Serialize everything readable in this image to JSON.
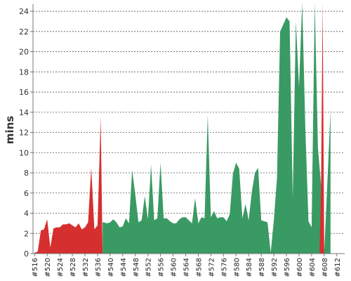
{
  "chart_data": {
    "type": "area",
    "ylabel": "mins",
    "xlabel": "",
    "title": "",
    "ylim": [
      0,
      24.7
    ],
    "yticks": [
      0,
      2,
      4,
      6,
      8,
      10,
      12,
      14,
      16,
      18,
      20,
      22,
      24
    ],
    "xlim": [
      515.5,
      614.5
    ],
    "xticks": [
      516,
      520,
      524,
      528,
      532,
      536,
      540,
      544,
      548,
      552,
      556,
      560,
      564,
      568,
      572,
      576,
      580,
      584,
      588,
      592,
      596,
      600,
      604,
      608,
      612
    ],
    "xtick_prefix": "#",
    "grid": true,
    "legend": "none",
    "colors": {
      "red": "#d62f2f",
      "green": "#3a9a63"
    },
    "series": [
      {
        "color": "red",
        "points": [
          [
            516,
            0.1
          ],
          [
            517,
            0.2
          ],
          [
            518,
            2.3
          ],
          [
            519,
            2.4
          ],
          [
            520,
            3.4
          ],
          [
            521,
            0.6
          ],
          [
            522,
            2.5
          ],
          [
            523,
            2.6
          ],
          [
            524,
            2.6
          ],
          [
            525,
            2.9
          ],
          [
            526,
            2.9
          ],
          [
            527,
            3.0
          ],
          [
            528,
            2.8
          ],
          [
            529,
            2.6
          ],
          [
            530,
            3.0
          ],
          [
            531,
            2.4
          ],
          [
            532,
            2.6
          ],
          [
            533,
            3.1
          ],
          [
            534,
            8.5
          ],
          [
            535,
            2.4
          ],
          [
            536,
            2.8
          ],
          [
            537,
            13.5
          ],
          [
            537.6,
            0
          ]
        ]
      },
      {
        "color": "green",
        "points": [
          [
            537.6,
            3.1
          ],
          [
            538,
            3.1
          ],
          [
            539,
            3.0
          ],
          [
            540,
            3.1
          ],
          [
            541,
            3.4
          ],
          [
            542,
            3.1
          ],
          [
            543,
            2.6
          ],
          [
            544,
            2.7
          ],
          [
            545,
            3.5
          ],
          [
            546,
            3.0
          ],
          [
            547,
            8.3
          ],
          [
            548,
            5.8
          ],
          [
            549,
            3.1
          ],
          [
            550,
            3.3
          ],
          [
            551,
            5.7
          ],
          [
            552,
            3.4
          ],
          [
            553,
            8.8
          ],
          [
            554,
            3.3
          ],
          [
            555,
            3.5
          ],
          [
            556,
            9.0
          ],
          [
            557,
            3.5
          ],
          [
            558,
            3.5
          ],
          [
            559,
            3.2
          ],
          [
            560,
            3.0
          ],
          [
            561,
            3.0
          ],
          [
            562,
            3.4
          ],
          [
            563,
            3.6
          ],
          [
            564,
            3.6
          ],
          [
            565,
            3.3
          ],
          [
            566,
            3.0
          ],
          [
            567,
            5.5
          ],
          [
            568,
            3.0
          ],
          [
            569,
            3.6
          ],
          [
            570,
            3.5
          ],
          [
            571,
            13.7
          ],
          [
            572,
            3.6
          ],
          [
            573,
            4.2
          ],
          [
            574,
            3.5
          ],
          [
            575,
            3.6
          ],
          [
            576,
            3.6
          ],
          [
            577,
            3.2
          ],
          [
            578,
            3.9
          ],
          [
            579,
            7.9
          ],
          [
            580,
            9.0
          ],
          [
            581,
            8.4
          ],
          [
            582,
            3.5
          ],
          [
            583,
            4.9
          ],
          [
            584,
            3.3
          ],
          [
            585,
            6.1
          ],
          [
            586,
            8.0
          ],
          [
            587,
            8.5
          ],
          [
            588,
            3.3
          ],
          [
            589,
            3.2
          ],
          [
            590,
            3.1
          ],
          [
            591,
            0.1
          ],
          [
            592,
            3.3
          ],
          [
            593,
            7.5
          ],
          [
            594,
            22.0
          ],
          [
            595,
            22.7
          ],
          [
            596,
            23.4
          ],
          [
            597,
            23.0
          ],
          [
            598,
            5.5
          ],
          [
            599,
            23.0
          ],
          [
            600,
            16.5
          ],
          [
            601,
            24.9
          ],
          [
            602,
            12.5
          ],
          [
            603,
            3.2
          ],
          [
            604,
            2.6
          ],
          [
            605,
            24.9
          ],
          [
            606,
            10.5
          ],
          [
            607,
            6.8
          ],
          [
            608,
            0.1
          ],
          [
            609,
            7.0
          ],
          [
            610,
            14.2
          ]
        ]
      },
      {
        "color": "red",
        "points": [
          [
            606.5,
            0
          ],
          [
            607,
            6.8
          ],
          [
            607.5,
            24.9
          ],
          [
            608,
            0.1
          ]
        ]
      }
    ]
  }
}
